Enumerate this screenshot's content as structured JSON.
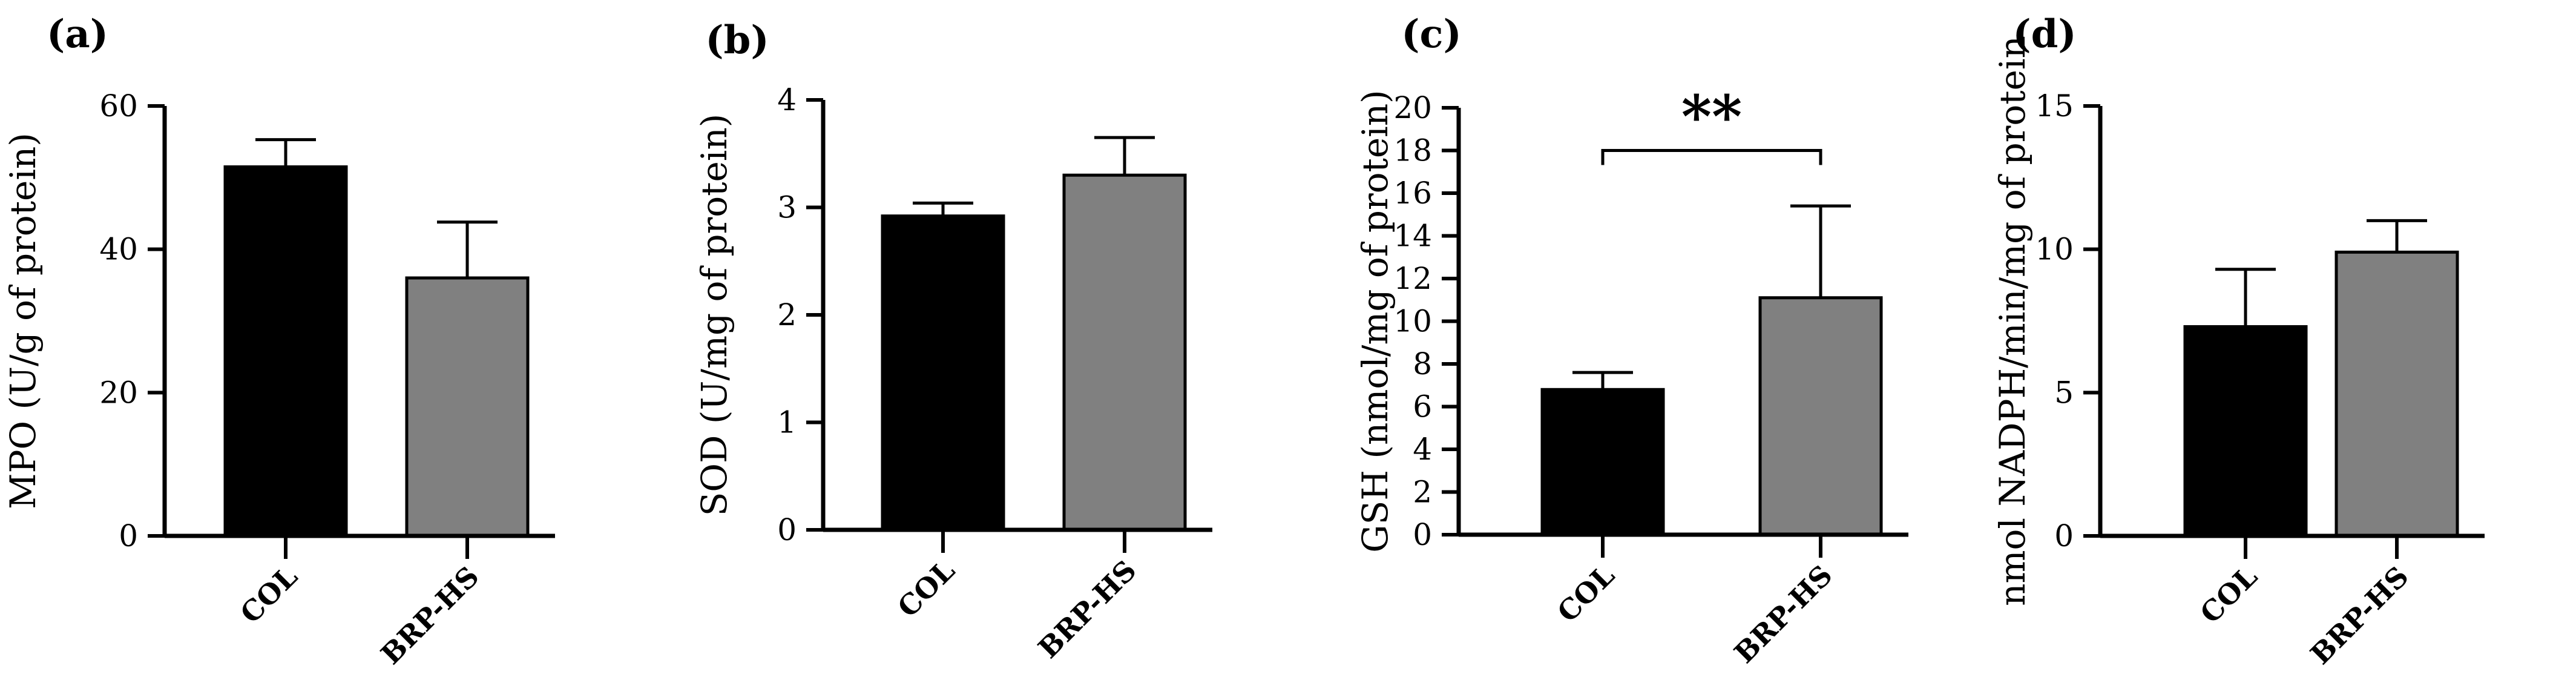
{
  "chart_data": [
    {
      "panel_label": "(a)",
      "type": "bar",
      "categories": [
        "COL",
        "BRP-HS"
      ],
      "values": [
        51.5,
        36
      ],
      "errors": [
        3.8,
        7.8
      ],
      "colors": [
        "#000000",
        "#808080"
      ],
      "ylabel": "MPO (U/g of protein)",
      "ylim": [
        0,
        60
      ],
      "yticks": [
        0,
        20,
        40,
        60
      ],
      "ytick_labels": [
        "0",
        "20",
        "40",
        "60"
      ]
    },
    {
      "panel_label": "(b)",
      "type": "bar",
      "categories": [
        "COL",
        "BRP-HS"
      ],
      "values": [
        2.92,
        3.3
      ],
      "errors": [
        0.12,
        0.35
      ],
      "colors": [
        "#000000",
        "#808080"
      ],
      "ylabel": "SOD (U/mg of protein)",
      "ylim": [
        0,
        4
      ],
      "yticks": [
        0,
        1,
        2,
        3,
        4
      ],
      "ytick_labels": [
        "0",
        "1",
        "2",
        "3",
        "4"
      ]
    },
    {
      "panel_label": "(c)",
      "type": "bar",
      "categories": [
        "COL",
        "BRP-HS"
      ],
      "values": [
        6.8,
        11.1
      ],
      "errors": [
        0.8,
        4.3
      ],
      "colors": [
        "#000000",
        "#808080"
      ],
      "ylabel": "GSH (nmol/mg of protein)",
      "ylim": [
        0,
        20
      ],
      "yticks": [
        0,
        2,
        4,
        6,
        8,
        10,
        12,
        14,
        16,
        18,
        20
      ],
      "ytick_labels": [
        "0",
        "2",
        "4",
        "6",
        "8",
        "10",
        "12",
        "14",
        "16",
        "18",
        "20"
      ],
      "significance": {
        "label": "**",
        "y": 18
      }
    },
    {
      "panel_label": "(d)",
      "type": "bar",
      "categories": [
        "COL",
        "BRP-HS"
      ],
      "values": [
        7.3,
        9.9
      ],
      "errors": [
        2.0,
        1.1
      ],
      "colors": [
        "#000000",
        "#808080"
      ],
      "ylabel": "nmol NADPH/min/mg of protein",
      "ylim": [
        0,
        15
      ],
      "yticks": [
        0,
        5,
        10,
        15
      ],
      "ytick_labels": [
        "0",
        "5",
        "10",
        "15"
      ]
    }
  ]
}
